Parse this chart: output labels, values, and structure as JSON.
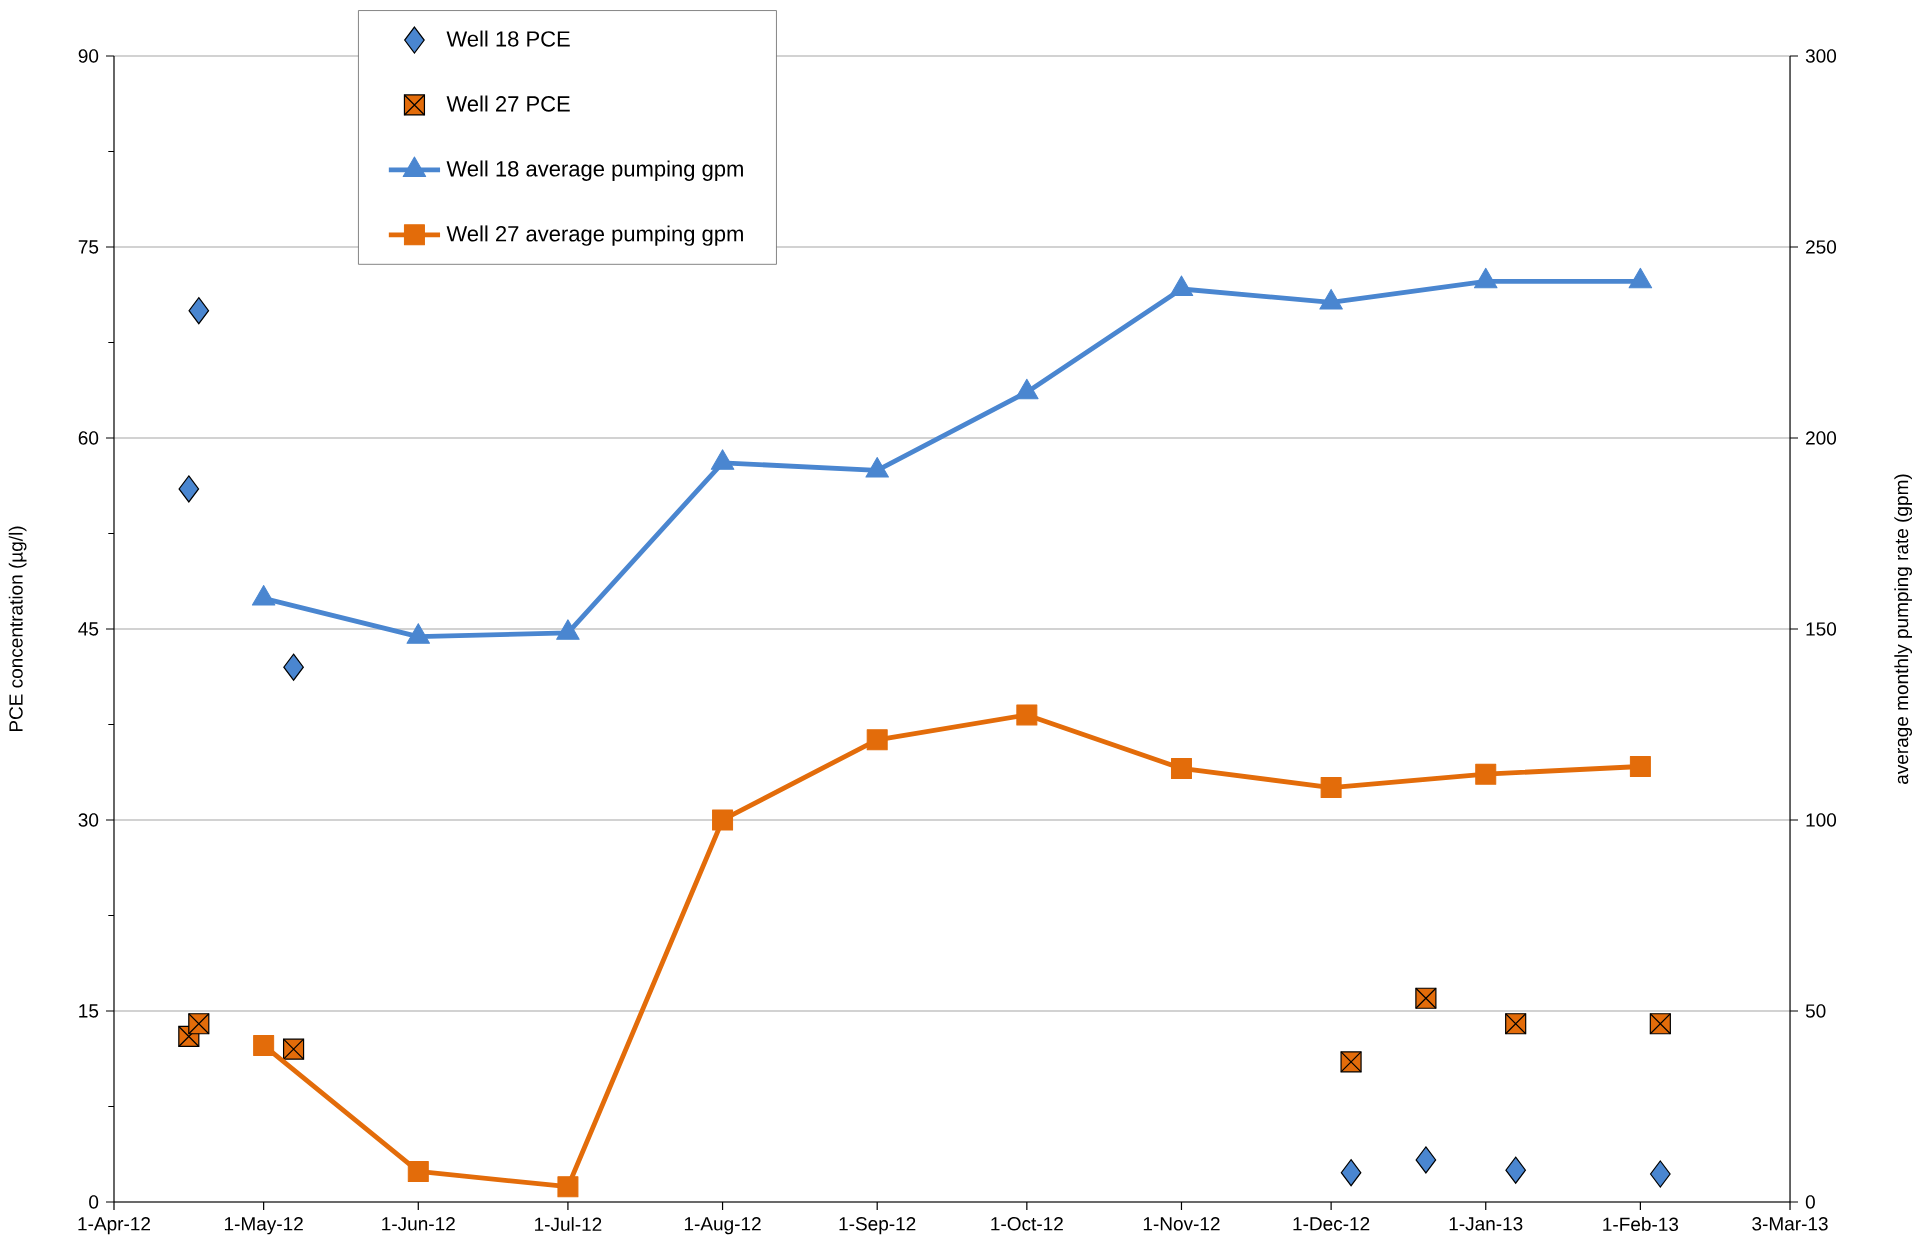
{
  "chart_data": {
    "type": "line",
    "xlabel": null,
    "ylabel": "PCE  concentration (µg/l)",
    "y2label": "average monthly pumping rate (gpm)",
    "xlim": [
      "2012-04-01",
      "2013-03-03"
    ],
    "xticks": [
      {
        "value": "2012-04-01",
        "label": "1-Apr-12"
      },
      {
        "value": "2012-05-01",
        "label": "1-May-12"
      },
      {
        "value": "2012-06-01",
        "label": "1-Jun-12"
      },
      {
        "value": "2012-07-01",
        "label": "1-Jul-12"
      },
      {
        "value": "2012-08-01",
        "label": "1-Aug-12"
      },
      {
        "value": "2012-09-01",
        "label": "1-Sep-12"
      },
      {
        "value": "2012-10-01",
        "label": "1-Oct-12"
      },
      {
        "value": "2012-11-01",
        "label": "1-Nov-12"
      },
      {
        "value": "2012-12-01",
        "label": "1-Dec-12"
      },
      {
        "value": "2013-01-01",
        "label": "1-Jan-13"
      },
      {
        "value": "2013-02-01",
        "label": "1-Feb-13"
      },
      {
        "value": "2013-03-03",
        "label": "3-Mar-13"
      }
    ],
    "ylim": [
      0,
      90
    ],
    "yticks": [
      0,
      15,
      30,
      45,
      60,
      75,
      90
    ],
    "y2lim": [
      0,
      300
    ],
    "y2ticks": [
      0,
      50,
      100,
      150,
      200,
      250,
      300
    ],
    "grid": "y",
    "legend": "top left",
    "series": [
      {
        "name": "Well 18 PCE",
        "type": "scatter",
        "marker": "diamond",
        "color": "#4a86d0",
        "x": [
          "2012-04-16",
          "2012-04-18",
          "2012-05-07",
          "2012-12-05",
          "2012-12-20",
          "2013-01-07",
          "2013-02-05"
        ],
        "values": [
          56,
          70,
          42,
          2.3,
          3.3,
          2.5,
          2.2
        ]
      },
      {
        "name": "Well 27 PCE",
        "type": "scatter",
        "marker": "square",
        "color": "#e36c0a",
        "x": [
          "2012-04-16",
          "2012-04-18",
          "2012-05-07",
          "2012-12-05",
          "2012-12-20",
          "2013-01-07",
          "2013-02-05"
        ],
        "values": [
          13,
          14,
          12,
          11,
          16,
          14,
          14
        ]
      },
      {
        "name": "Well 18 average pumping gpm",
        "marker": "triangle",
        "axis": "y2",
        "color": "#4a86d0",
        "x": [
          "2012-05-01",
          "2012-06-01",
          "2012-07-01",
          "2012-08-01",
          "2012-09-01",
          "2012-10-01",
          "2012-11-01",
          "2012-12-01",
          "2013-01-01",
          "2013-02-01"
        ],
        "values": [
          158,
          148,
          149,
          193.5,
          191.5,
          212,
          239,
          235.5,
          241,
          241
        ]
      },
      {
        "name": "Well 27 average pumping gpm",
        "marker": "square",
        "axis": "y2",
        "color": "#e36c0a",
        "x": [
          "2012-05-01",
          "2012-06-01",
          "2012-07-01",
          "2012-08-01",
          "2012-09-01",
          "2012-10-01",
          "2012-11-01",
          "2012-12-01",
          "2013-01-01",
          "2013-02-01"
        ],
        "values": [
          41,
          8,
          4,
          100,
          121,
          127.5,
          113.5,
          108.5,
          112,
          114
        ]
      }
    ]
  }
}
